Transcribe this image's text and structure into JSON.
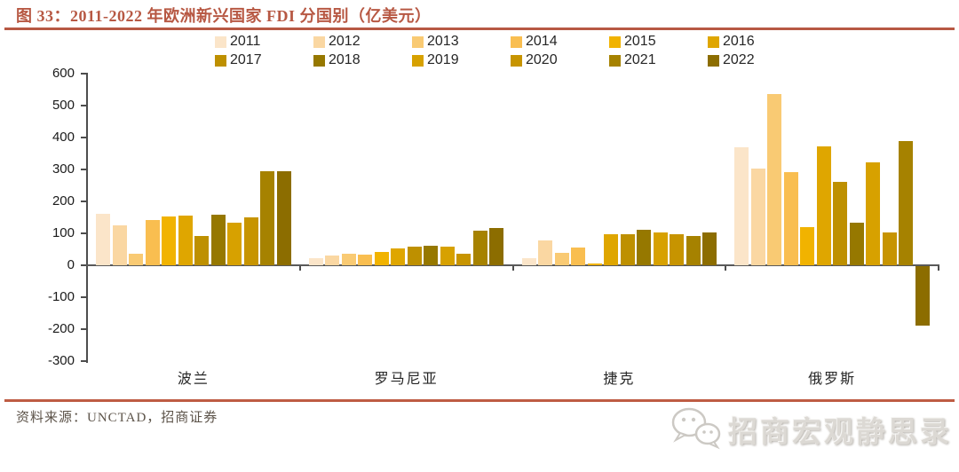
{
  "title": "图 33：2011-2022 年欧洲新兴国家 FDI 分国别（亿美元）",
  "accent_color": "#B75843",
  "footer": {
    "source": "资料来源：UNCTAD，招商证券"
  },
  "watermark": {
    "icon": "wechat-icon",
    "text": "招商宏观静思录"
  },
  "chart_data": {
    "type": "bar",
    "title": "2011-2022 年欧洲新兴国家 FDI 分国别",
    "unit": "亿美元",
    "categories": [
      "波兰",
      "罗马尼亚",
      "捷克",
      "俄罗斯"
    ],
    "ylim": [
      -300,
      600
    ],
    "ytick_step": 100,
    "grid": false,
    "legend_position": "top",
    "axis_color": "#4d4d4d",
    "series": [
      {
        "name": "2011",
        "color": "#FBE5C9",
        "values": [
          160,
          22,
          23,
          370
        ]
      },
      {
        "name": "2012",
        "color": "#FAD7A2",
        "values": [
          125,
          30,
          79,
          303
        ]
      },
      {
        "name": "2013",
        "color": "#F9CA73",
        "values": [
          35,
          37,
          38,
          535
        ]
      },
      {
        "name": "2014",
        "color": "#F9BE50",
        "values": [
          141,
          32,
          55,
          292
        ]
      },
      {
        "name": "2015",
        "color": "#F1B300",
        "values": [
          153,
          43,
          5,
          119
        ]
      },
      {
        "name": "2016",
        "color": "#DFA600",
        "values": [
          156,
          52,
          98,
          373
        ]
      },
      {
        "name": "2017",
        "color": "#BE9000",
        "values": [
          92,
          57,
          96,
          260
        ]
      },
      {
        "name": "2018",
        "color": "#967800",
        "values": [
          158,
          62,
          110,
          132
        ]
      },
      {
        "name": "2019",
        "color": "#D7A100",
        "values": [
          134,
          58,
          103,
          321
        ]
      },
      {
        "name": "2020",
        "color": "#C79400",
        "values": [
          151,
          35,
          96,
          103
        ]
      },
      {
        "name": "2021",
        "color": "#A68200",
        "values": [
          295,
          108,
          92,
          388
        ]
      },
      {
        "name": "2022",
        "color": "#8C6D00",
        "values": [
          294,
          116,
          102,
          -187
        ]
      }
    ]
  }
}
